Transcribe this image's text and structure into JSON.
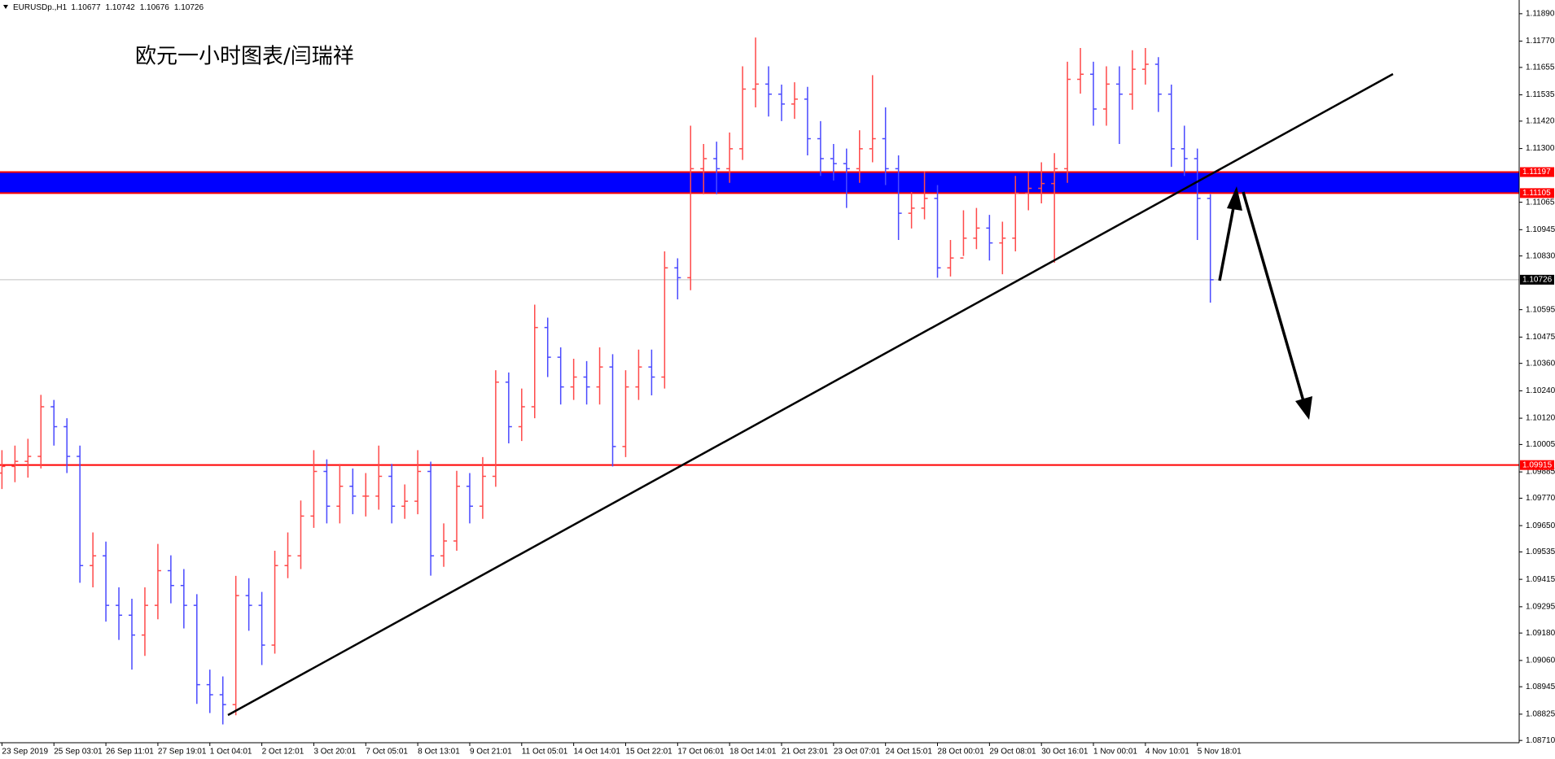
{
  "chart_data": {
    "type": "ohlc",
    "title": "欧元一小时图表/闫瑞祥",
    "header": {
      "symbol": "EURUSDp.,H1",
      "values": [
        1.10677,
        1.10742,
        1.10676,
        1.10726
      ]
    },
    "x": [
      "23 Sep 2019",
      null,
      null,
      null,
      "25 Sep 03:01",
      null,
      null,
      null,
      "26 Sep 11:01",
      null,
      null,
      null,
      "27 Sep 19:01",
      null,
      null,
      null,
      "1 Oct 04:01",
      null,
      null,
      null,
      "2 Oct 12:01",
      null,
      null,
      null,
      "3 Oct 20:01",
      null,
      null,
      null,
      "7 Oct 05:01",
      null,
      null,
      null,
      "8 Oct 13:01",
      null,
      null,
      null,
      "9 Oct 21:01",
      null,
      null,
      null,
      "11 Oct 05:01",
      null,
      null,
      null,
      "14 Oct 14:01",
      null,
      null,
      null,
      "15 Oct 22:01",
      null,
      null,
      null,
      "17 Oct 06:01",
      null,
      null,
      null,
      "18 Oct 14:01",
      null,
      null,
      null,
      "21 Oct 23:01",
      null,
      null,
      null,
      "23 Oct 07:01",
      null,
      null,
      null,
      "24 Oct 15:01",
      null,
      null,
      null,
      "28 Oct 00:01",
      null,
      null,
      null,
      "29 Oct 08:01",
      null,
      null,
      null,
      "30 Oct 16:01",
      null,
      null,
      null,
      "1 Nov 00:01",
      null,
      null,
      null,
      "4 Nov 10:01",
      null,
      null,
      null,
      "5 Nov 18:01",
      null
    ],
    "open": [
      1.0988,
      1.09909,
      1.09931,
      1.09953,
      1.1017,
      1.10083,
      1.09953,
      1.09475,
      1.09518,
      1.09301,
      1.09258,
      1.09171,
      1.09301,
      1.09453,
      1.09388,
      1.09301,
      1.08954,
      1.0891,
      1.08867,
      1.09344,
      1.09301,
      1.09127,
      1.09475,
      1.09518,
      1.09692,
      1.09887,
      1.09735,
      1.09822,
      1.09779,
      1.09779,
      1.09866,
      1.09735,
      1.09757,
      1.09887,
      1.09518,
      1.09583,
      1.09822,
      1.09735,
      1.09866,
      1.10278,
      1.10083,
      1.1017,
      1.10517,
      1.10387,
      1.10257,
      1.103,
      1.10257,
      1.10344,
      1.09996,
      1.10257,
      1.10344,
      1.103,
      1.10778,
      1.10735,
      1.11212,
      1.11256,
      1.11212,
      1.11299,
      1.1156,
      1.11582,
      1.11538,
      1.11495,
      1.11516,
      1.11343,
      1.11256,
      1.11234,
      1.11212,
      1.11299,
      1.11343,
      1.11212,
      1.11017,
      1.11039,
      1.11082,
      1.10778,
      1.10821,
      1.10908,
      1.10952,
      1.10887,
      1.10908,
      1.11104,
      1.11126,
      1.11147,
      1.11212,
      1.11603,
      1.11625,
      1.11473,
      1.11582,
      1.11538,
      1.11647,
      1.11669,
      1.11538,
      1.11299,
      1.11256,
      1.11082
    ],
    "high": [
      1.0998,
      1.1,
      1.1003,
      1.10222,
      1.102,
      1.1012,
      1.1,
      1.0962,
      1.0958,
      1.0938,
      1.0933,
      1.0938,
      1.0957,
      1.0952,
      1.0946,
      1.0935,
      1.0902,
      1.0899,
      1.0943,
      1.0942,
      1.0936,
      1.0954,
      1.0962,
      1.0976,
      1.0998,
      1.0994,
      1.0992,
      1.099,
      1.0988,
      1.1,
      1.0992,
      1.0983,
      1.0998,
      1.0993,
      1.0966,
      1.0989,
      1.0988,
      1.0995,
      1.1033,
      1.1032,
      1.1025,
      1.10617,
      1.1056,
      1.1043,
      1.1038,
      1.1037,
      1.1043,
      1.104,
      1.1033,
      1.1042,
      1.1042,
      1.1085,
      1.1082,
      1.114,
      1.1132,
      1.1133,
      1.1137,
      1.1166,
      1.11786,
      1.1166,
      1.1158,
      1.1159,
      1.1157,
      1.1142,
      1.1132,
      1.113,
      1.1138,
      1.11621,
      1.1148,
      1.1127,
      1.1111,
      1.112,
      1.1114,
      1.109,
      1.1103,
      1.1104,
      1.1101,
      1.1098,
      1.1118,
      1.112,
      1.1124,
      1.1128,
      1.1168,
      1.1174,
      1.1168,
      1.1166,
      1.1166,
      1.1173,
      1.1174,
      1.117,
      1.1158,
      1.114,
      1.113,
      1.111
    ],
    "low": [
      1.0981,
      1.0984,
      1.0986,
      1.099,
      1.1,
      1.0988,
      1.094,
      1.0938,
      1.0923,
      1.0915,
      1.0902,
      1.0908,
      1.0924,
      1.0931,
      1.092,
      1.0887,
      1.0883,
      1.0878,
      1.0882,
      1.0919,
      1.0904,
      1.0909,
      1.0942,
      1.0946,
      1.0964,
      1.0966,
      1.0966,
      1.097,
      1.0969,
      1.0972,
      1.0966,
      1.0968,
      1.097,
      1.09431,
      1.0947,
      1.0954,
      1.0966,
      1.0968,
      1.0982,
      1.1001,
      1.1002,
      1.1012,
      1.103,
      1.1018,
      1.102,
      1.1018,
      1.1018,
      1.09909,
      1.0995,
      1.102,
      1.1022,
      1.1025,
      1.1064,
      1.1068,
      1.111,
      1.111,
      1.1115,
      1.1125,
      1.1148,
      1.1144,
      1.1142,
      1.1143,
      1.1127,
      1.1118,
      1.1116,
      1.1104,
      1.1115,
      1.1124,
      1.1114,
      1.109,
      1.1095,
      1.1099,
      1.10735,
      1.1074,
      1.1083,
      1.1086,
      1.1081,
      1.1075,
      1.1085,
      1.1103,
      1.1106,
      1.108,
      1.1115,
      1.1154,
      1.114,
      1.114,
      1.1132,
      1.1147,
      1.1158,
      1.1146,
      1.1122,
      1.1118,
      1.109,
      1.10626
    ],
    "close": [
      1.09909,
      1.09931,
      1.09953,
      1.1017,
      1.10083,
      1.09953,
      1.09475,
      1.09518,
      1.09301,
      1.09258,
      1.09171,
      1.09301,
      1.09453,
      1.09388,
      1.09301,
      1.08954,
      1.0891,
      1.08867,
      1.09344,
      1.09301,
      1.09127,
      1.09475,
      1.09518,
      1.09692,
      1.09887,
      1.09735,
      1.09822,
      1.09779,
      1.09779,
      1.09866,
      1.09735,
      1.09757,
      1.09887,
      1.09518,
      1.09583,
      1.09822,
      1.09735,
      1.09866,
      1.10278,
      1.10083,
      1.1017,
      1.10517,
      1.10387,
      1.10257,
      1.103,
      1.10257,
      1.10344,
      1.09996,
      1.10257,
      1.10344,
      1.103,
      1.10778,
      1.10735,
      1.11212,
      1.11256,
      1.11212,
      1.11299,
      1.1156,
      1.11582,
      1.11538,
      1.11495,
      1.11516,
      1.11343,
      1.11256,
      1.11234,
      1.11212,
      1.11299,
      1.11343,
      1.11212,
      1.11017,
      1.11039,
      1.11082,
      1.10778,
      1.10821,
      1.10908,
      1.10952,
      1.10887,
      1.10908,
      1.11104,
      1.11126,
      1.11147,
      1.11212,
      1.11603,
      1.11625,
      1.11473,
      1.11582,
      1.11538,
      1.11647,
      1.11669,
      1.11538,
      1.11299,
      1.11256,
      1.11082,
      1.10726
    ],
    "up_color": "#ff4a4a",
    "down_color": "#4a4aff",
    "ylim": [
      1.087,
      1.1195
    ],
    "yticks": [
      {
        "value": 1.1189,
        "label": "1.11890"
      },
      {
        "value": 1.1177,
        "label": "1.11770"
      },
      1.11655,
      1.11535,
      {
        "value": 1.1142,
        "label": "1.11420"
      },
      {
        "value": 1.113,
        "label": "1.11300"
      },
      1.11065,
      1.10945,
      {
        "value": 1.1083,
        "label": "1.10830"
      },
      1.10595,
      1.10475,
      {
        "value": 1.1036,
        "label": "1.10360"
      },
      {
        "value": 1.1024,
        "label": "1.10240"
      },
      {
        "value": 1.1012,
        "label": "1.10120"
      },
      1.10005,
      1.09885,
      {
        "value": 1.0977,
        "label": "1.09770"
      },
      {
        "value": 1.0965,
        "label": "1.09650"
      },
      1.09535,
      1.09415,
      1.09295,
      {
        "value": 1.0918,
        "label": "1.09180"
      },
      {
        "value": 1.0906,
        "label": "1.09060"
      },
      1.08945,
      1.08825,
      {
        "value": 1.0871,
        "label": "1.08710"
      }
    ],
    "levels": [
      {
        "value": 1.11197,
        "color": "#ff0000"
      },
      {
        "value": 1.11105,
        "color": "#ff0000"
      },
      {
        "value": 1.09915,
        "color": "#ff0000"
      }
    ],
    "band_color": "#0000ff",
    "last": 1.10726,
    "last_color": "#000000",
    "grid": false
  }
}
